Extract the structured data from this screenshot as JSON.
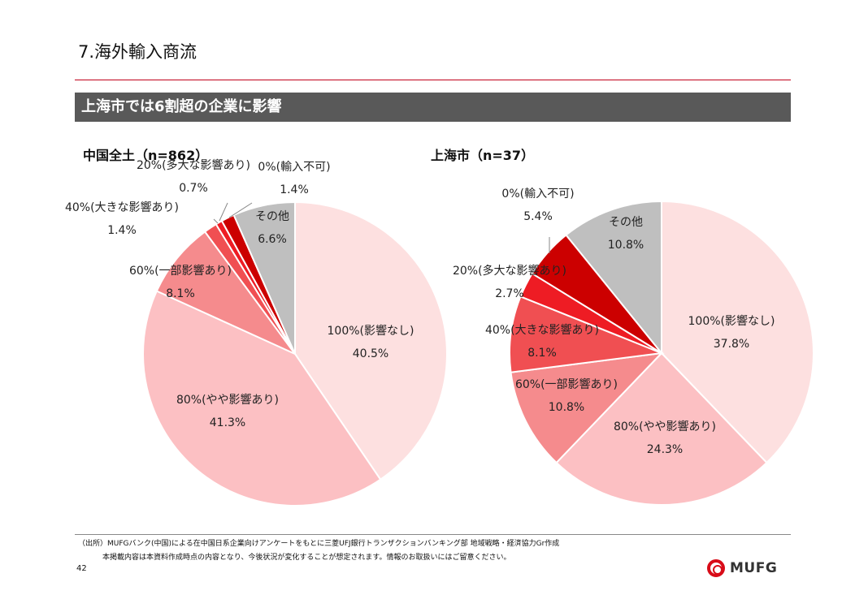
{
  "page": {
    "title": "7.海外輸入商流",
    "banner": "上海市では6割超の企業に影響",
    "source": "（出所）MUFGバンク(中国)による在中国日系企業向けアンケートをもとに三菱UFJ銀行トランザクションバンキング部 地域戦略・経済協力Gr作成",
    "note": "本掲載内容は本資料作成時点の内容となり、今後状況が変化することが想定されます。情報のお取扱いにはご留意ください。",
    "page_number": "42",
    "logo_text": "MUFG"
  },
  "chart_data": [
    {
      "type": "pie",
      "title": "中国全土（n=862）",
      "slices": [
        {
          "label": "100%(影響なし)",
          "value": 40.5,
          "value_label": "40.5%",
          "color": "#fde0e0"
        },
        {
          "label": "80%(やや影響あり)",
          "value": 41.3,
          "value_label": "41.3%",
          "color": "#fcc0c3"
        },
        {
          "label": "60%(一部影響あり)",
          "value": 8.1,
          "value_label": "8.1%",
          "color": "#f58b8d"
        },
        {
          "label": "40%(大きな影響あり)",
          "value": 1.4,
          "value_label": "1.4%",
          "color": "#f04f52"
        },
        {
          "label": "20%(多大な影響あり)",
          "value": 0.7,
          "value_label": "0.7%",
          "color": "#ee1c24"
        },
        {
          "label": "0%(輸入不可)",
          "value": 1.4,
          "value_label": "1.4%",
          "color": "#cc0000"
        },
        {
          "label": "その他",
          "value": 6.6,
          "value_label": "6.6%",
          "color": "#bfbfbf"
        }
      ]
    },
    {
      "type": "pie",
      "title": "上海市（n=37）",
      "slices": [
        {
          "label": "100%(影響なし)",
          "value": 37.8,
          "value_label": "37.8%",
          "color": "#fde0e0"
        },
        {
          "label": "80%(やや影響あり)",
          "value": 24.3,
          "value_label": "24.3%",
          "color": "#fcc0c3"
        },
        {
          "label": "60%(一部影響あり)",
          "value": 10.8,
          "value_label": "10.8%",
          "color": "#f58b8d"
        },
        {
          "label": "40%(大きな影響あり)",
          "value": 8.1,
          "value_label": "8.1%",
          "color": "#f04f52"
        },
        {
          "label": "20%(多大な影響あり)",
          "value": 2.7,
          "value_label": "2.7%",
          "color": "#ee1c24"
        },
        {
          "label": "0%(輸入不可)",
          "value": 5.4,
          "value_label": "5.4%",
          "color": "#cc0000"
        },
        {
          "label": "その他",
          "value": 10.8,
          "value_label": "10.8%",
          "color": "#bfbfbf"
        }
      ]
    }
  ]
}
